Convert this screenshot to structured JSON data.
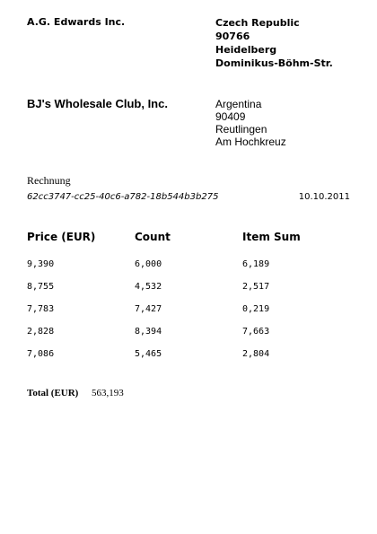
{
  "sender": {
    "name": "A.G. Edwards Inc.",
    "address": [
      "Czech Republic",
      "90766",
      "Heidelberg",
      "Dominikus-Böhm-Str."
    ]
  },
  "recipient": {
    "name": "BJ's Wholesale Club, Inc.",
    "address": [
      "Argentina",
      "90409",
      "Reutlingen",
      "Am Hochkreuz"
    ]
  },
  "invoice": {
    "title": "Rechnung",
    "id": "62cc3747-cc25-40c6-a782-18b544b3b275",
    "date": "10.10.2011"
  },
  "table": {
    "headers": [
      "Price (EUR)",
      "Count",
      "Item Sum"
    ],
    "rows": [
      [
        "9,390",
        "6,000",
        "6,189"
      ],
      [
        "8,755",
        "4,532",
        "2,517"
      ],
      [
        "7,783",
        "7,427",
        "0,219"
      ],
      [
        "2,828",
        "8,394",
        "7,663"
      ],
      [
        "7,086",
        "5,465",
        "2,804"
      ]
    ]
  },
  "total": {
    "label": "Total (EUR)",
    "value": "563,193"
  }
}
